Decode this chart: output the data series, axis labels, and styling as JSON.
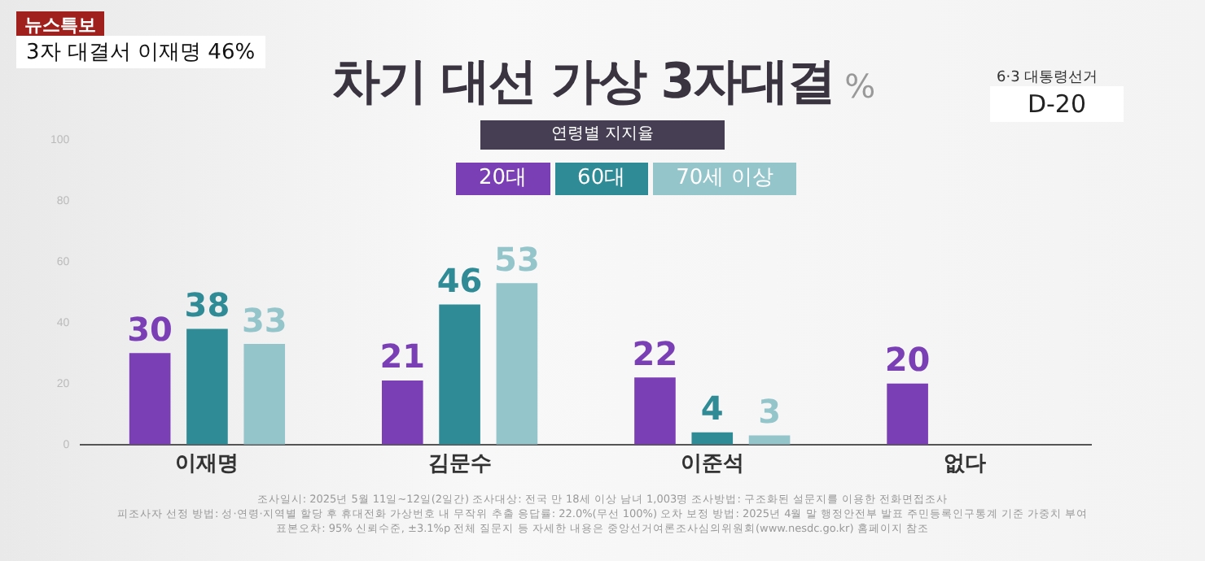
{
  "chart_data": {
    "type": "bar",
    "title": "차기 대선 가상 3자대결",
    "ylabel": "%",
    "subtitle": "연령별 지지율",
    "categories": [
      "이재명",
      "김문수",
      "이준석",
      "없다"
    ],
    "series": [
      {
        "name": "20대",
        "color": "#7b3fb5",
        "values": [
          30,
          21,
          22,
          20
        ]
      },
      {
        "name": "60대",
        "color": "#2f8b96",
        "values": [
          38,
          46,
          4,
          null
        ]
      },
      {
        "name": "70세 이상",
        "color": "#93c5cb",
        "values": [
          33,
          53,
          3,
          null
        ]
      }
    ],
    "ylim": [
      0,
      100
    ],
    "yticks": [
      0,
      20,
      40,
      60,
      80,
      100
    ],
    "grid": false,
    "legend": "top",
    "data_labels": true,
    "annotations": [
      "뉴스특보",
      "3자 대결서 이재명 46%",
      "6·3 대통령선거",
      "D-20",
      "조사일시: 2025년 5월 11일~12일(2일간)   조사대상: 전국 만 18세 이상 남녀 1,003명   조사방법: 구조화된 설문지를 이용한 전화면접조사",
      "피조사자 선정 방법: 성·연령·지역별 할당 후 휴대전화 가상번호 내 무작위 추출   응답률: 22.0%(무선 100%)   오차 보정 방법: 2025년 4월 말 행정안전부 발표 주민등록인구통계 기준 가중치 부여",
      "표본오차: 95% 신뢰수준, ±3.1%p   전체 질문지 등 자세한 내용은 중앙선거여론조사심의위원회(www.nesdc.go.kr) 홈페이지 참조"
    ]
  }
}
